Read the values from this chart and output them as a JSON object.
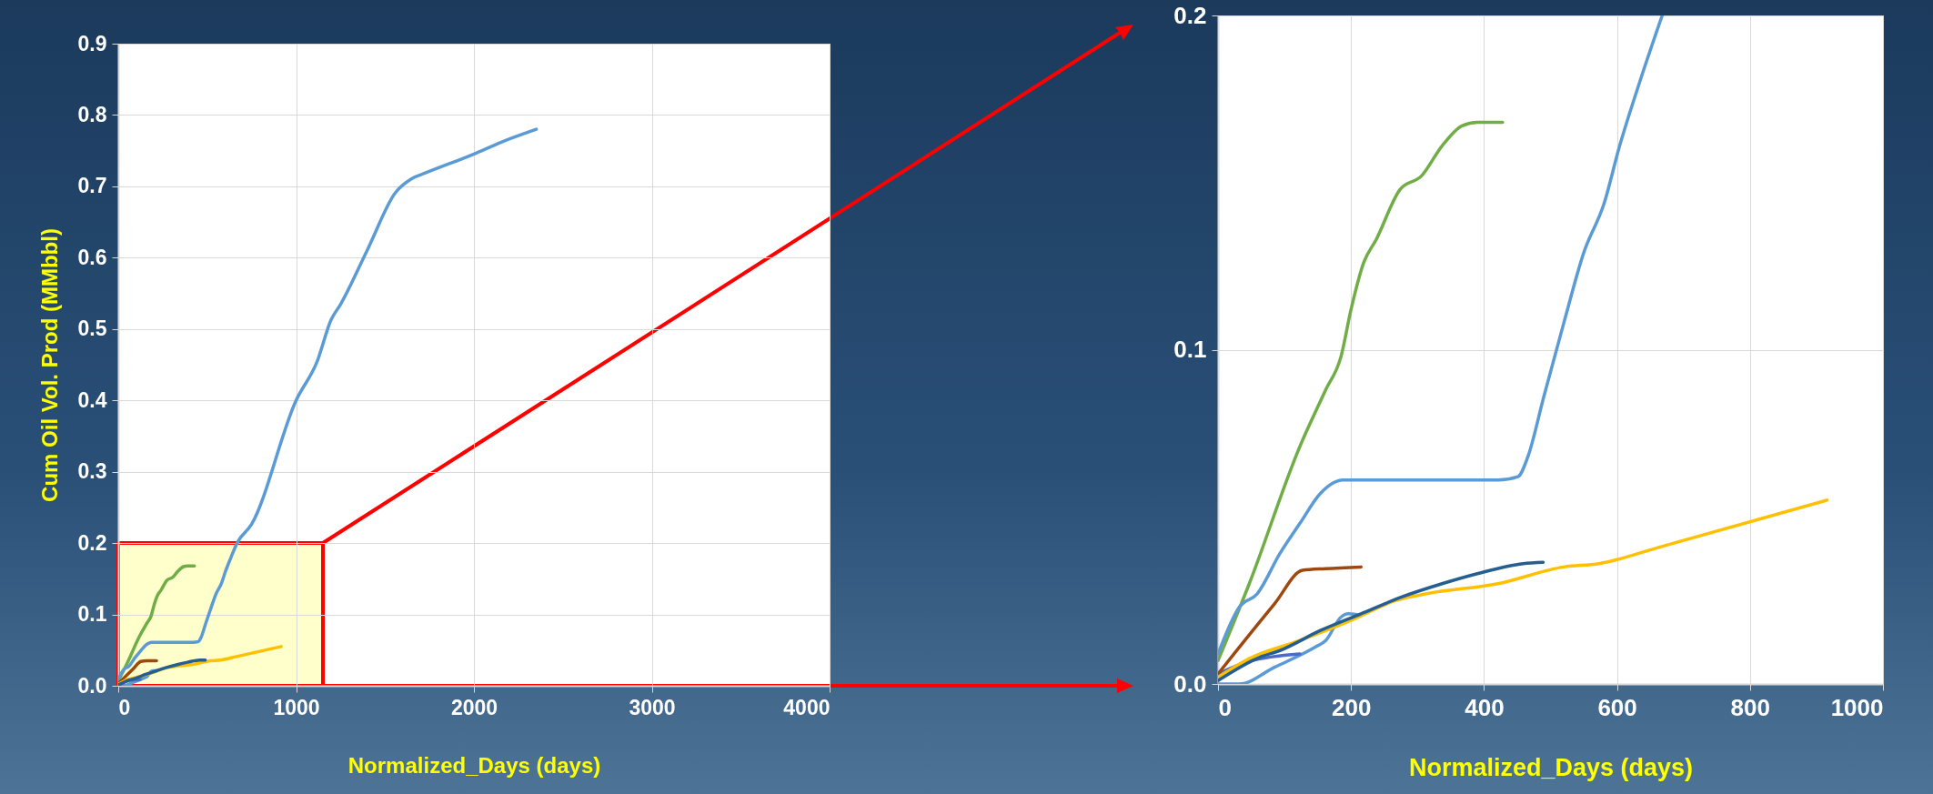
{
  "chart_data": [
    {
      "type": "line",
      "xlabel": "Normalized_Days (days)",
      "ylabel": "Cum Oil Vol. Prod (MMbbl)",
      "xlim": [
        0,
        4000
      ],
      "ylim": [
        0,
        0.9
      ],
      "xticks": [
        0,
        1000,
        2000,
        3000,
        4000
      ],
      "yticks": [
        {
          "value": 0,
          "label": "0.0"
        },
        0.1,
        0.2,
        0.3,
        0.4,
        0.5,
        0.6,
        0.7,
        0.8,
        0.9
      ],
      "grid": true,
      "series": [
        {
          "color": "#70ad47",
          "x": [
            0,
            47,
            123,
            162,
            185,
            200,
            219,
            238,
            274,
            306,
            337,
            367,
            390,
            428
          ],
          "values": [
            0.007,
            0.03,
            0.071,
            0.088,
            0.098,
            0.112,
            0.126,
            0.133,
            0.148,
            0.152,
            0.161,
            0.167,
            0.168,
            0.168
          ]
        },
        {
          "color": "#5b9bd5",
          "x": [
            0,
            32,
            59,
            93,
            123,
            154,
            188,
            238,
            314,
            421,
            451,
            466,
            490,
            520,
            550,
            581,
            604,
            634,
            668,
            749,
            1000,
            1119,
            1197,
            1251,
            1401,
            1558,
            1652,
            1730,
            1997,
            2154,
            2351
          ],
          "values": [
            0.009,
            0.023,
            0.027,
            0.039,
            0.048,
            0.057,
            0.061,
            0.061,
            0.061,
            0.061,
            0.062,
            0.068,
            0.086,
            0.108,
            0.129,
            0.144,
            0.161,
            0.18,
            0.2,
            0.226,
            0.4,
            0.455,
            0.513,
            0.535,
            0.611,
            0.691,
            0.711,
            0.719,
            0.745,
            0.762,
            0.78
          ]
        },
        {
          "color": "#5b9bd5",
          "x": [
            0,
            32,
            85,
            146,
            162,
            185,
            196,
            215
          ],
          "values": [
            0,
            0,
            0.005,
            0.011,
            0.013,
            0.02,
            0.021,
            0.021
          ]
        },
        {
          "color": "#4a6cc8",
          "x": [
            0,
            47,
            123
          ],
          "values": [
            0.003,
            0.007,
            0.009
          ]
        },
        {
          "color": "#9e480e",
          "x": [
            0,
            32,
            85,
            127,
            162,
            215
          ],
          "values": [
            0.003,
            0.011,
            0.024,
            0.034,
            0.035,
            0.035
          ]
        },
        {
          "color": "#ffc000",
          "x": [
            0,
            47,
            123,
            200,
            268,
            314,
            421,
            520,
            573,
            665,
            916
          ],
          "values": [
            0.002,
            0.008,
            0.013,
            0.019,
            0.025,
            0.027,
            0.03,
            0.035,
            0.036,
            0.041,
            0.055
          ]
        },
        {
          "color": "#255e91",
          "x": [
            0,
            63,
            93,
            154,
            215,
            276,
            337,
            390,
            459,
            489
          ],
          "values": [
            0.001,
            0.008,
            0.01,
            0.016,
            0.021,
            0.026,
            0.03,
            0.033,
            0.036,
            0.036
          ]
        }
      ]
    },
    {
      "type": "line",
      "xlabel": "Normalized_Days (days)",
      "xlim": [
        0,
        1000
      ],
      "ylim": [
        0,
        0.2
      ],
      "xticks": [
        0,
        200,
        400,
        600,
        800,
        1000
      ],
      "yticks": [
        {
          "value": 0,
          "label": "0.0"
        },
        0.1,
        0.2
      ],
      "grid": true,
      "series": [
        {
          "color": "#70ad47",
          "x": [
            0,
            47,
            123,
            162,
            185,
            200,
            219,
            238,
            274,
            306,
            337,
            367,
            390,
            428
          ],
          "values": [
            0.007,
            0.03,
            0.071,
            0.088,
            0.098,
            0.112,
            0.126,
            0.133,
            0.148,
            0.152,
            0.161,
            0.167,
            0.168,
            0.168
          ]
        },
        {
          "color": "#5b9bd5",
          "x": [
            0,
            32,
            59,
            93,
            123,
            154,
            188,
            238,
            314,
            421,
            451,
            466,
            490,
            520,
            550,
            581,
            604,
            634,
            668
          ],
          "values": [
            0.009,
            0.023,
            0.027,
            0.039,
            0.048,
            0.057,
            0.061,
            0.061,
            0.061,
            0.061,
            0.062,
            0.068,
            0.086,
            0.108,
            0.129,
            0.144,
            0.161,
            0.18,
            0.2
          ]
        },
        {
          "color": "#5b9bd5",
          "x": [
            0,
            32,
            85,
            146,
            162,
            185,
            196,
            215
          ],
          "values": [
            0,
            0,
            0.005,
            0.011,
            0.013,
            0.02,
            0.021,
            0.0205
          ]
        },
        {
          "color": "#4a6cc8",
          "x": [
            0,
            47,
            123
          ],
          "values": [
            0.003,
            0.0068,
            0.009
          ]
        },
        {
          "color": "#9e480e",
          "x": [
            0,
            32,
            85,
            127,
            162,
            215
          ],
          "values": [
            0.003,
            0.011,
            0.024,
            0.034,
            0.0345,
            0.035
          ]
        },
        {
          "color": "#ffc000",
          "x": [
            0,
            47,
            123,
            200,
            268,
            314,
            421,
            520,
            573,
            665,
            916
          ],
          "values": [
            0.002,
            0.0076,
            0.013,
            0.019,
            0.025,
            0.027,
            0.03,
            0.035,
            0.036,
            0.041,
            0.055
          ]
        },
        {
          "color": "#255e91",
          "x": [
            0,
            63,
            93,
            154,
            215,
            276,
            337,
            390,
            459,
            489
          ],
          "values": [
            0.001,
            0.008,
            0.01,
            0.016,
            0.021,
            0.026,
            0.03,
            0.033,
            0.036,
            0.0364
          ]
        }
      ]
    }
  ]
}
